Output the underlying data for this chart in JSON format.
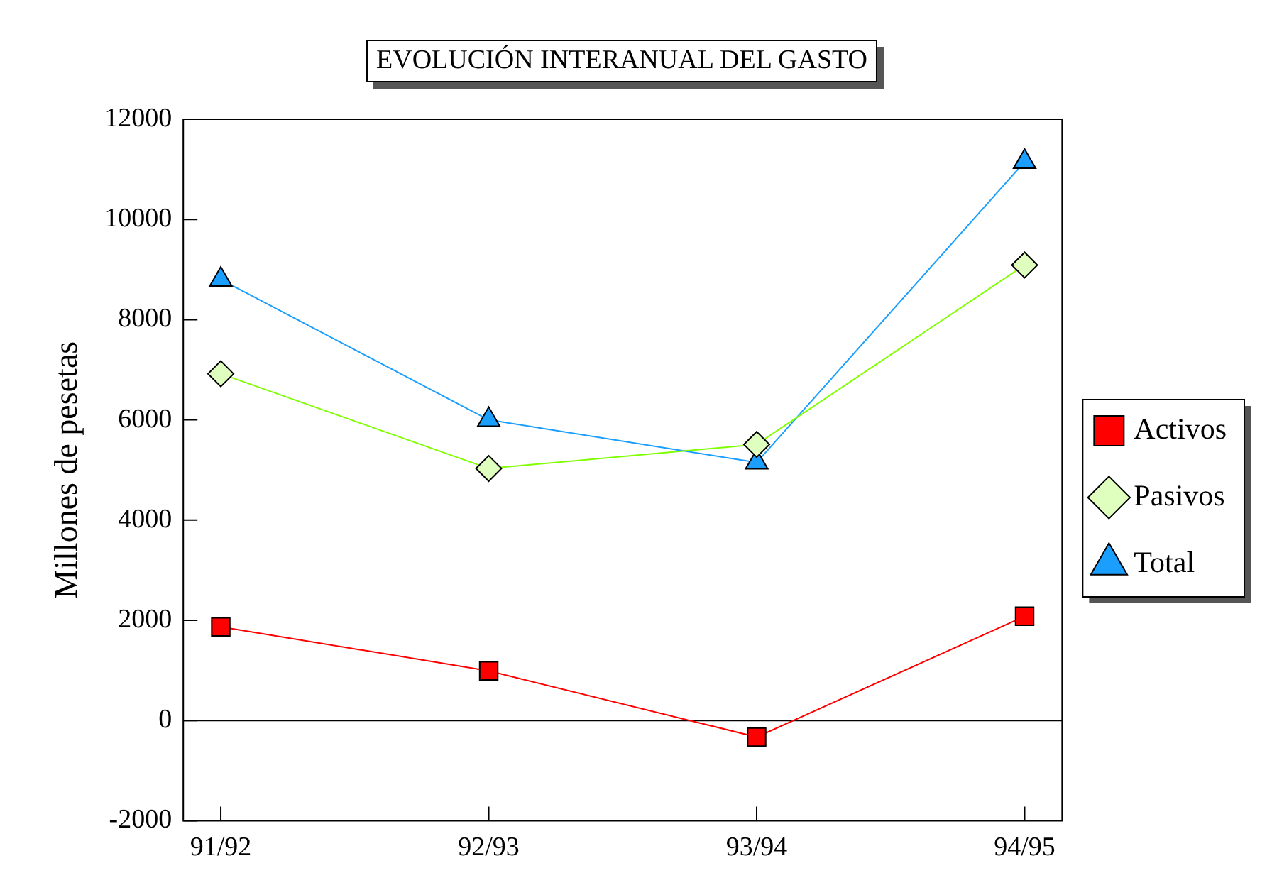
{
  "chart_data": {
    "type": "line",
    "title": "EVOLUCIÓN INTERANUAL DEL GASTO",
    "ylabel": "Millones de pesetas",
    "categories": [
      "91/92",
      "92/93",
      "93/94",
      "94/95"
    ],
    "series": [
      {
        "name": "Activos",
        "color": "#ff0000",
        "marker": "square",
        "values": [
          1870,
          990,
          -330,
          2080
        ]
      },
      {
        "name": "Pasivos",
        "color": "#80ff00",
        "marker": "diamond",
        "values": [
          6920,
          5030,
          5510,
          9090
        ]
      },
      {
        "name": "Total",
        "color": "#1a9fff",
        "marker": "triangle",
        "values": [
          8800,
          6000,
          5150,
          11150
        ]
      }
    ],
    "ylim": [
      -2000,
      12000
    ],
    "yticks": [
      -2000,
      0,
      2000,
      4000,
      6000,
      8000,
      10000,
      12000
    ],
    "ref_lines": [
      {
        "axis": "y",
        "value": 0,
        "color": "#000000"
      }
    ],
    "grid": false,
    "legend": "right",
    "line_style": "solid"
  }
}
